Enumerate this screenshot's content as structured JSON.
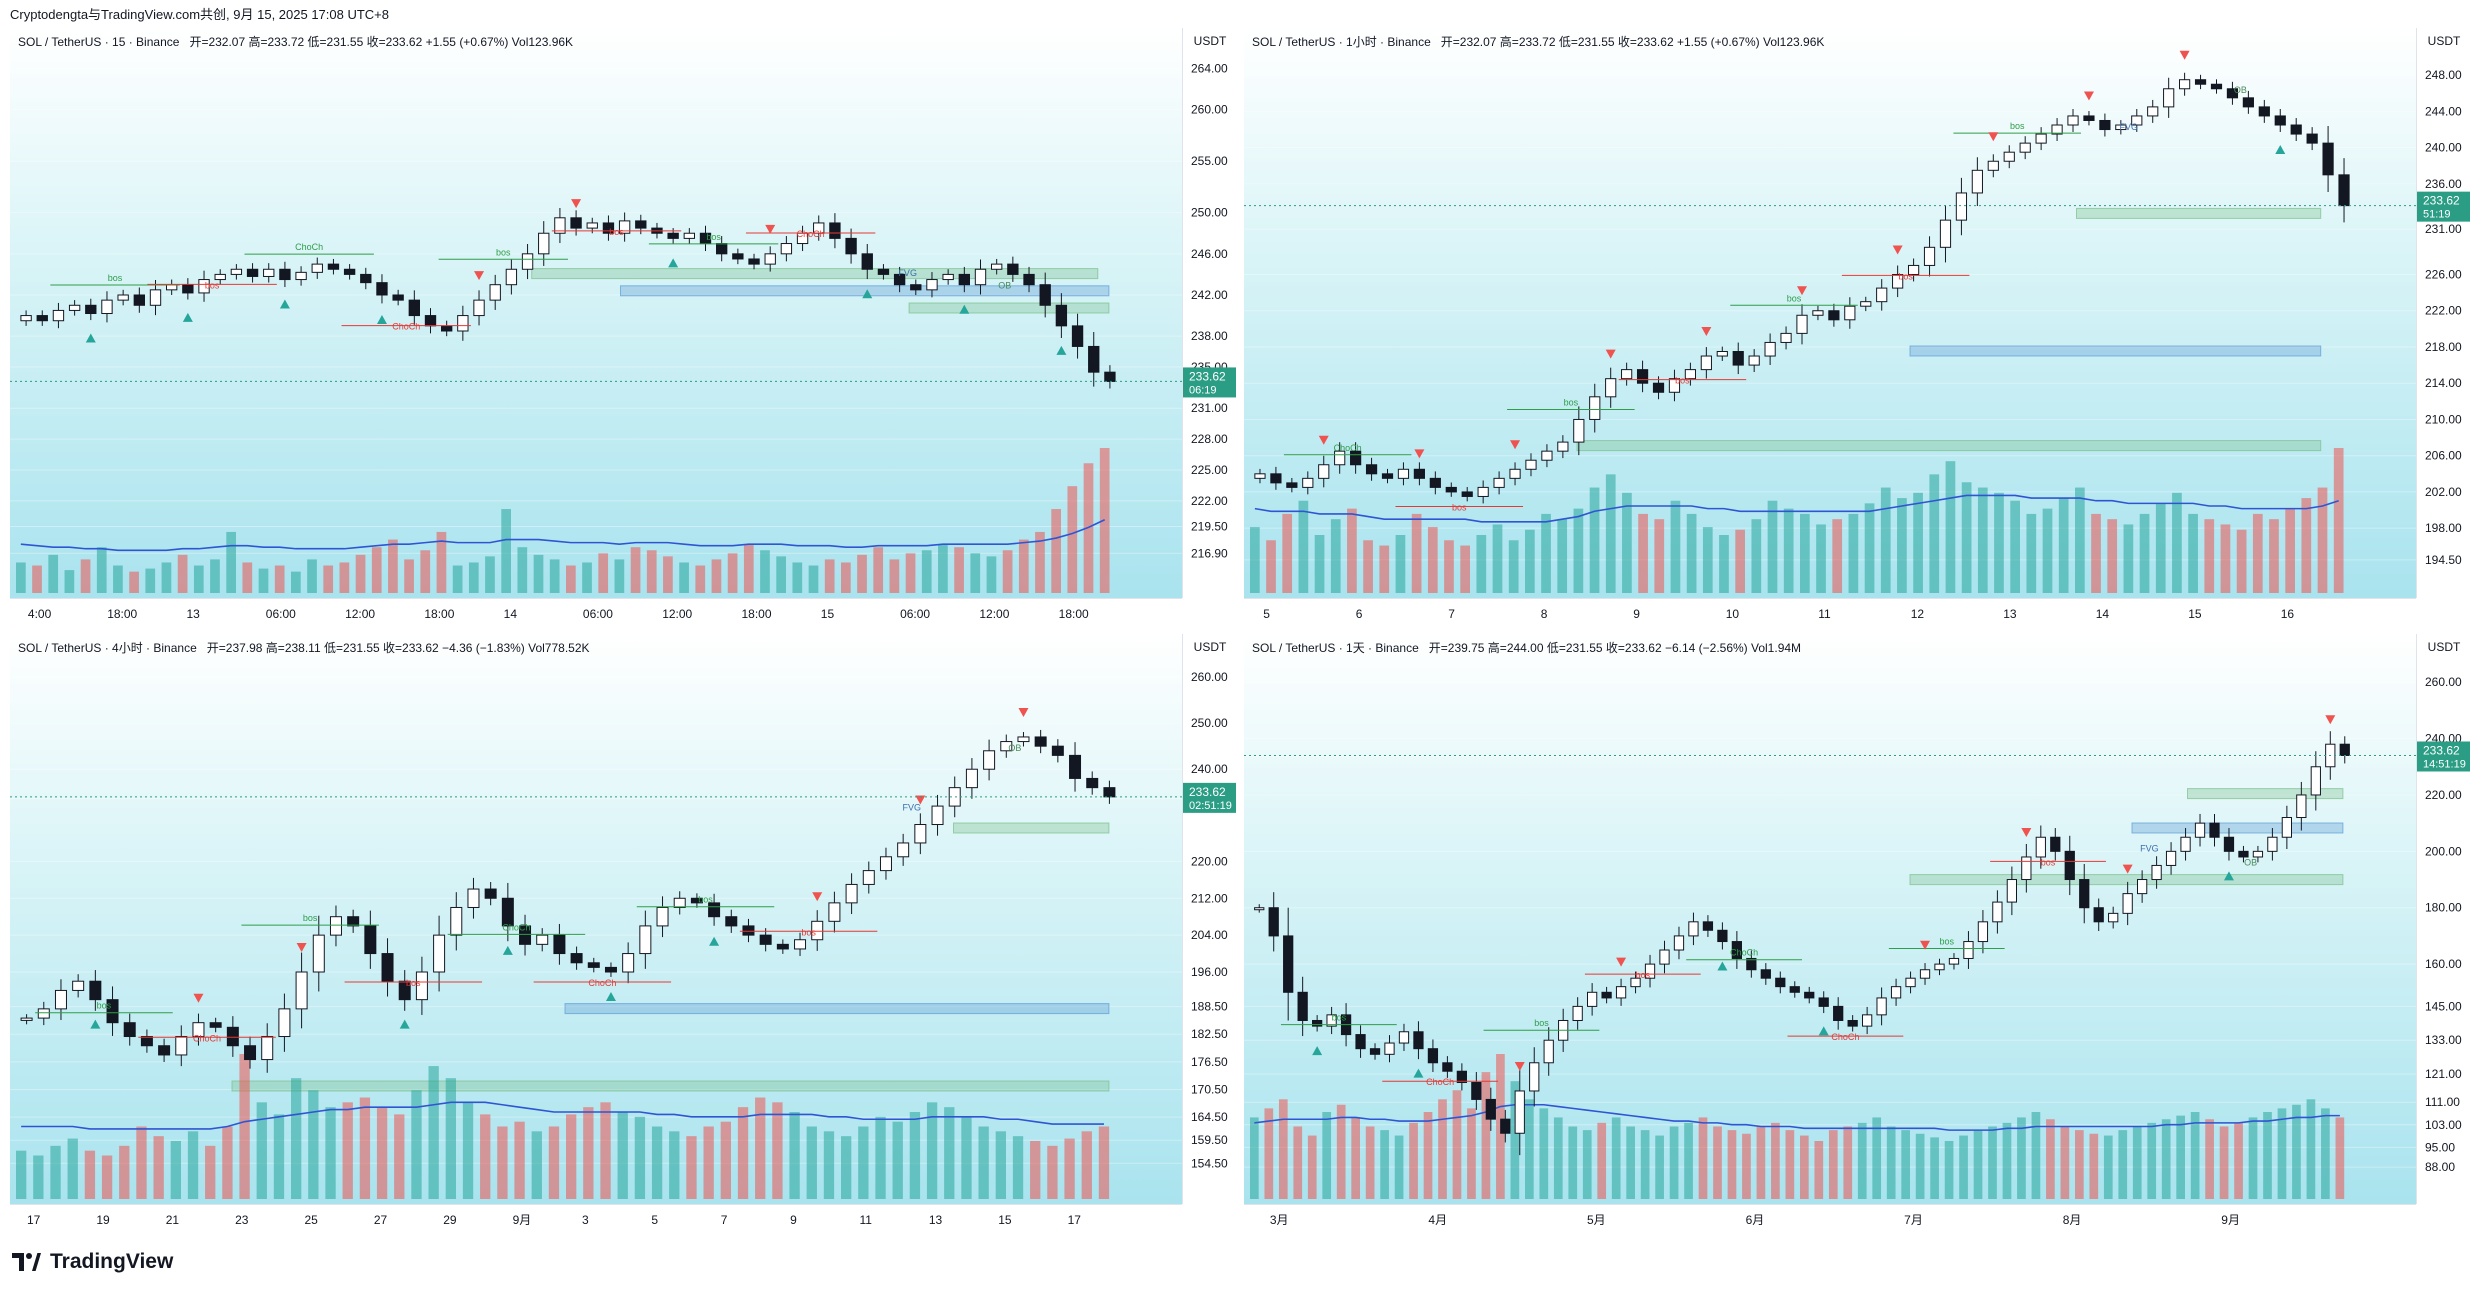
{
  "header": {
    "text": "Cryptodengta与TradingView.com共创, 9月 15, 2025 17:08 UTC+8"
  },
  "footer": {
    "brand": "TradingView"
  },
  "colors": {
    "up": "#26a69a",
    "down": "#ef5350",
    "volume_ma": "#2f55d4",
    "bos_up": "#2e9e48",
    "bos_down": "#e53935",
    "fvg": "#5b9bd5",
    "ob": "#7bbf8c",
    "price_tag": "#2a9d84"
  },
  "chart_data": [
    {
      "id": "m15",
      "type": "candlestick",
      "title": "SOL / TetherUS · 15 · Binance",
      "ohlc_text": "开=232.07  高=233.72  低=231.55  收=233.62  +1.55 (+0.67%)  Vol123.96K",
      "unit": "USDT",
      "yticks": [
        "264.00",
        "260.00",
        "255.00",
        "250.00",
        "246.00",
        "242.00",
        "238.00",
        "235.00",
        "231.00",
        "228.00",
        "225.00",
        "222.00",
        "219.50",
        "216.90"
      ],
      "ytick_values": [
        264,
        260,
        255,
        250,
        246,
        242,
        238,
        235,
        231,
        228,
        225,
        222,
        219.5,
        216.9
      ],
      "ylim": [
        214.5,
        266
      ],
      "xticks": [
        "4:00",
        "18:00",
        "13",
        "06:00",
        "12:00",
        "18:00",
        "14",
        "06:00",
        "12:00",
        "18:00",
        "15",
        "06:00",
        "12:00",
        "18:00"
      ],
      "last_price": "233.62",
      "countdown": "06:19",
      "price_path": [
        240,
        239.5,
        240.5,
        241,
        240.2,
        241.5,
        242,
        241,
        242.5,
        243,
        242.2,
        243.5,
        244,
        244.5,
        243.8,
        244.5,
        243.5,
        244.2,
        245,
        244.5,
        244,
        243.2,
        242,
        241.5,
        240,
        239,
        238.5,
        240,
        241.5,
        243,
        244.5,
        246,
        248,
        249.5,
        248.5,
        249,
        248,
        249.2,
        248.5,
        248,
        247.5,
        248,
        247,
        246,
        245.5,
        245,
        246,
        247,
        248,
        249,
        247.5,
        246,
        244.5,
        244,
        243,
        242.5,
        243.5,
        244,
        243,
        244.5,
        245,
        244,
        243,
        241,
        239,
        237,
        234.5,
        233.6
      ],
      "volume": [
        20,
        18,
        25,
        15,
        22,
        30,
        18,
        14,
        16,
        20,
        25,
        18,
        22,
        40,
        20,
        16,
        18,
        14,
        22,
        18,
        20,
        25,
        30,
        35,
        22,
        28,
        40,
        18,
        20,
        24,
        55,
        30,
        25,
        22,
        18,
        20,
        26,
        22,
        30,
        28,
        24,
        20,
        18,
        22,
        26,
        32,
        28,
        24,
        20,
        18,
        22,
        20,
        25,
        30,
        22,
        26,
        28,
        32,
        30,
        26,
        24,
        28,
        35,
        40,
        55,
        70,
        85,
        95
      ],
      "volume_ma": [
        32,
        31,
        30,
        30,
        29,
        29,
        28,
        28,
        28,
        28,
        29,
        29,
        30,
        31,
        31,
        30,
        30,
        29,
        29,
        29,
        29,
        30,
        31,
        32,
        32,
        33,
        34,
        33,
        33,
        33,
        35,
        35,
        35,
        34,
        33,
        33,
        33,
        32,
        33,
        33,
        33,
        32,
        31,
        31,
        31,
        32,
        32,
        32,
        31,
        31,
        31,
        30,
        30,
        31,
        31,
        31,
        31,
        32,
        32,
        32,
        32,
        32,
        33,
        34,
        36,
        39,
        43,
        48
      ],
      "annotations": [
        "bos",
        "bos",
        "ChoCh",
        "ChoCh",
        "bos",
        "bos",
        "bos",
        "ChoCh",
        "FVG",
        "OB"
      ]
    },
    {
      "id": "h1",
      "type": "candlestick",
      "title": "SOL / TetherUS · 1小时 · Binance",
      "ohlc_text": "开=232.07  高=233.72  低=231.55  收=233.62  +1.55 (+0.67%)  Vol123.96K",
      "unit": "USDT",
      "yticks": [
        "248.00",
        "244.00",
        "240.00",
        "236.00",
        "231.00",
        "226.00",
        "222.00",
        "218.00",
        "214.00",
        "210.00",
        "206.00",
        "202.00",
        "198.00",
        "194.50"
      ],
      "ytick_values": [
        248,
        244,
        240,
        236,
        231,
        226,
        222,
        218,
        214,
        210,
        206,
        202,
        198,
        194.5
      ],
      "ylim": [
        192.5,
        251
      ],
      "xticks": [
        "5",
        "6",
        "7",
        "8",
        "9",
        "10",
        "11",
        "12",
        "13",
        "14",
        "15",
        "16"
      ],
      "last_price": "233.62",
      "countdown": "51:19",
      "price_path": [
        204,
        203,
        202.5,
        203.5,
        205,
        206.5,
        205,
        204,
        203.5,
        204.5,
        203.5,
        202.5,
        202,
        201.5,
        202.5,
        203.5,
        204.5,
        205.5,
        206.5,
        207.5,
        210,
        212.5,
        214.5,
        215.5,
        214,
        213,
        214.5,
        215.5,
        217,
        217.5,
        216,
        217,
        218.5,
        219.5,
        221.5,
        222,
        221,
        222.5,
        223,
        224.5,
        226,
        227,
        229,
        232,
        235,
        237.5,
        238.5,
        239.5,
        240.5,
        241.5,
        242.5,
        243.5,
        243,
        242,
        242.5,
        243.5,
        244.5,
        246.5,
        247.5,
        247,
        246.5,
        245.5,
        244.5,
        243.5,
        242.5,
        241.5,
        240.5,
        237,
        233.6
      ],
      "volume": [
        25,
        20,
        30,
        35,
        22,
        28,
        32,
        20,
        18,
        22,
        30,
        25,
        20,
        18,
        22,
        26,
        20,
        24,
        30,
        28,
        32,
        40,
        45,
        38,
        30,
        28,
        35,
        30,
        25,
        22,
        24,
        28,
        35,
        32,
        30,
        26,
        28,
        30,
        34,
        40,
        36,
        38,
        45,
        50,
        42,
        40,
        38,
        35,
        30,
        32,
        36,
        40,
        30,
        28,
        26,
        30,
        34,
        38,
        30,
        28,
        26,
        24,
        30,
        28,
        32,
        36,
        40,
        55
      ],
      "volume_ma": [
        32,
        31,
        31,
        31,
        30,
        30,
        30,
        29,
        28,
        28,
        28,
        28,
        28,
        28,
        27,
        27,
        27,
        27,
        27,
        28,
        29,
        31,
        32,
        33,
        33,
        33,
        33,
        33,
        32,
        32,
        31,
        31,
        31,
        31,
        31,
        31,
        31,
        31,
        31,
        32,
        33,
        34,
        35,
        36,
        37,
        37,
        37,
        37,
        36,
        36,
        36,
        36,
        35,
        35,
        34,
        34,
        34,
        34,
        34,
        33,
        33,
        32,
        32,
        32,
        32,
        32,
        33,
        35
      ],
      "annotations": [
        "ChoCh",
        "bos",
        "bos",
        "bos",
        "bos",
        "bos",
        "bos",
        "FVG",
        "OB"
      ]
    },
    {
      "id": "h4",
      "type": "candlestick",
      "title": "SOL / TetherUS · 4小时 · Binance",
      "ohlc_text": "开=237.98  高=238.11  低=231.55  收=233.62  −4.36 (−1.83%)  Vol778.52K",
      "unit": "USDT",
      "yticks": [
        "260.00",
        "250.00",
        "240.00",
        "233.62",
        "220.00",
        "212.00",
        "204.00",
        "196.00",
        "188.50",
        "182.50",
        "176.50",
        "170.50",
        "164.50",
        "159.50",
        "154.50"
      ],
      "ytick_values": [
        260,
        250,
        240,
        233.62,
        220,
        212,
        204,
        196,
        188.5,
        182.5,
        176.5,
        170.5,
        164.5,
        159.5,
        154.5
      ],
      "ylim": [
        150,
        265
      ],
      "xticks": [
        "17",
        "19",
        "21",
        "23",
        "25",
        "27",
        "29",
        "9月",
        "3",
        "5",
        "7",
        "9",
        "11",
        "13",
        "15",
        "17"
      ],
      "last_price": "233.62",
      "countdown": "02:51:19",
      "price_path": [
        186,
        188,
        192,
        194,
        190,
        185,
        182,
        180,
        178,
        182,
        185,
        184,
        180,
        177,
        182,
        188,
        196,
        204,
        208,
        206,
        200,
        194,
        190,
        196,
        204,
        210,
        214,
        212,
        206,
        202,
        204,
        200,
        198,
        197,
        196,
        200,
        206,
        210,
        212,
        211,
        208,
        206,
        204,
        202,
        201,
        203,
        207,
        211,
        215,
        218,
        221,
        224,
        228,
        232,
        236,
        240,
        244,
        246,
        247,
        245,
        243,
        238,
        236,
        234
      ],
      "volume": [
        20,
        18,
        22,
        25,
        20,
        18,
        22,
        30,
        26,
        24,
        28,
        22,
        30,
        60,
        40,
        35,
        50,
        45,
        38,
        40,
        42,
        38,
        35,
        45,
        55,
        50,
        40,
        35,
        30,
        32,
        28,
        30,
        35,
        38,
        40,
        36,
        34,
        30,
        28,
        26,
        30,
        32,
        38,
        42,
        40,
        36,
        30,
        28,
        26,
        30,
        34,
        32,
        36,
        40,
        38,
        34,
        30,
        28,
        26,
        24,
        22,
        25,
        28,
        30
      ],
      "volume_ma": [
        30,
        30,
        30,
        30,
        29,
        29,
        29,
        29,
        29,
        29,
        29,
        29,
        30,
        32,
        33,
        34,
        35,
        36,
        37,
        37,
        38,
        38,
        38,
        38,
        39,
        40,
        40,
        40,
        39,
        38,
        37,
        36,
        36,
        36,
        36,
        36,
        36,
        35,
        35,
        34,
        34,
        34,
        34,
        35,
        35,
        35,
        35,
        34,
        34,
        33,
        33,
        33,
        33,
        34,
        34,
        34,
        34,
        33,
        33,
        32,
        31,
        31,
        31,
        31
      ],
      "annotations": [
        "bos",
        "ChoCh",
        "bos",
        "bos",
        "ChoCh",
        "ChoCh",
        "bos",
        "bos",
        "FVG",
        "OB"
      ]
    },
    {
      "id": "d1",
      "type": "candlestick",
      "title": "SOL / TetherUS · 1天 · Binance",
      "ohlc_text": "开=239.75  高=244.00  低=231.55  收=233.62  −6.14 (−2.56%)  Vol1.94M",
      "unit": "USDT",
      "yticks": [
        "260.00",
        "240.00",
        "233.62",
        "220.00",
        "200.00",
        "180.00",
        "160.00",
        "145.00",
        "133.00",
        "121.00",
        "111.00",
        "103.00",
        "95.00",
        "88.00"
      ],
      "ytick_values": [
        260,
        240,
        233.62,
        220,
        200,
        180,
        160,
        145,
        133,
        121,
        111,
        103,
        95,
        88
      ],
      "ylim": [
        82,
        270
      ],
      "xticks": [
        "3月",
        "4月",
        "5月",
        "6月",
        "7月",
        "8月",
        "9月"
      ],
      "last_price": "233.62",
      "countdown": "14:51:19",
      "price_path": [
        180,
        170,
        150,
        140,
        138,
        142,
        135,
        130,
        128,
        132,
        136,
        130,
        125,
        122,
        118,
        112,
        105,
        100,
        115,
        125,
        133,
        140,
        145,
        150,
        148,
        152,
        155,
        160,
        165,
        170,
        175,
        172,
        168,
        162,
        158,
        155,
        152,
        150,
        148,
        145,
        140,
        138,
        142,
        148,
        152,
        155,
        158,
        160,
        162,
        168,
        175,
        182,
        190,
        198,
        205,
        200,
        190,
        180,
        175,
        178,
        185,
        190,
        195,
        200,
        205,
        210,
        205,
        200,
        198,
        200,
        205,
        212,
        220,
        230,
        238,
        234
      ],
      "volume": [
        45,
        50,
        55,
        40,
        35,
        48,
        52,
        45,
        40,
        38,
        35,
        42,
        48,
        55,
        60,
        50,
        70,
        80,
        65,
        55,
        50,
        45,
        40,
        38,
        42,
        45,
        40,
        38,
        35,
        40,
        42,
        45,
        40,
        38,
        36,
        40,
        42,
        38,
        35,
        32,
        38,
        40,
        42,
        45,
        40,
        38,
        36,
        34,
        32,
        35,
        38,
        40,
        42,
        45,
        48,
        44,
        40,
        38,
        36,
        35,
        38,
        40,
        42,
        44,
        46,
        48,
        44,
        40,
        42,
        45,
        48,
        50,
        52,
        55,
        50,
        45
      ],
      "volume_ma": [
        42,
        43,
        44,
        44,
        44,
        44,
        45,
        45,
        44,
        44,
        43,
        43,
        43,
        44,
        45,
        46,
        48,
        51,
        52,
        52,
        52,
        51,
        50,
        49,
        48,
        47,
        46,
        45,
        44,
        43,
        43,
        42,
        42,
        41,
        41,
        40,
        40,
        40,
        39,
        39,
        39,
        39,
        39,
        39,
        39,
        39,
        39,
        39,
        38,
        38,
        38,
        38,
        39,
        39,
        40,
        40,
        40,
        40,
        40,
        40,
        40,
        40,
        40,
        41,
        41,
        42,
        42,
        42,
        42,
        43,
        43,
        44,
        45,
        45,
        46,
        46
      ],
      "annotations": [
        "bos",
        "ChoCh",
        "bos",
        "bos",
        "ChoCh",
        "ChoCh",
        "bos",
        "bos",
        "FVG",
        "OB"
      ]
    }
  ]
}
